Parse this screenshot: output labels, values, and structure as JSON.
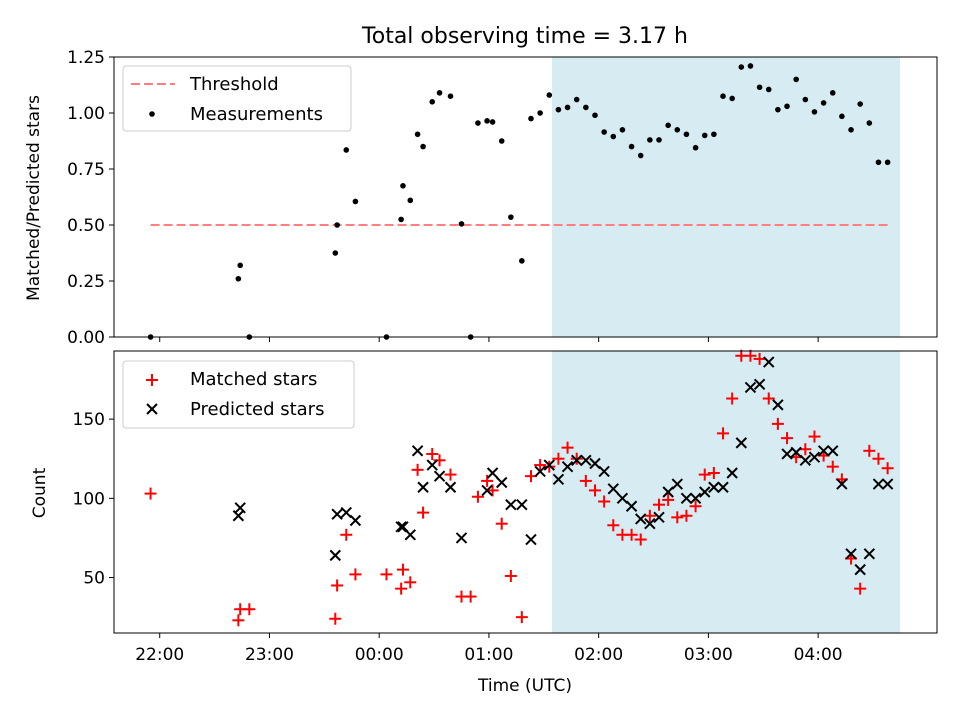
{
  "chart_data": {
    "type": "scatter",
    "title": "Total observing time = 3.17 h",
    "xlabel": "Time (UTC)",
    "x_unit": "hours",
    "xlim": [
      "21:35",
      "05:05"
    ],
    "x_ticks": [
      "22:00",
      "23:00",
      "00:00",
      "01:00",
      "02:00",
      "03:00",
      "04:00"
    ],
    "highlight_region": {
      "start": "01:29",
      "end": "04:40",
      "color": "#add8e6"
    },
    "panels": [
      {
        "name": "ratio",
        "ylabel": "Matched/Predicted stars",
        "ylim": [
          0,
          1.25
        ],
        "yticks": [
          "0.00",
          "0.25",
          "0.50",
          "0.75",
          "1.00",
          "1.25"
        ],
        "legend_position": "upper-left",
        "series": [
          {
            "name": "Threshold",
            "kind": "line",
            "style": "dashed",
            "color": "#ff7f7f",
            "x": [
              "21:55",
              "04:40"
            ],
            "y": [
              0.5,
              0.5
            ]
          },
          {
            "name": "Measurements",
            "kind": "scatter",
            "marker": "dot",
            "color": "#000000",
            "x": [
              "21:55",
              "22:43",
              "22:44",
              "22:49",
              "23:36",
              "23:37",
              "23:42",
              "23:47",
              "00:04",
              "00:12",
              "00:13",
              "00:17",
              "00:21",
              "00:24",
              "00:29",
              "00:33",
              "00:39",
              "00:45",
              "00:50",
              "00:54",
              "00:59",
              "01:02",
              "01:07",
              "01:12",
              "01:18",
              "01:23",
              "01:28",
              "01:33",
              "01:38",
              "01:43",
              "01:48",
              "01:53",
              "01:58",
              "02:03",
              "02:08",
              "02:13",
              "02:18",
              "02:23",
              "02:28",
              "02:33",
              "02:38",
              "02:43",
              "02:48",
              "02:53",
              "02:58",
              "03:03",
              "03:08",
              "03:13",
              "03:18",
              "03:23",
              "03:28",
              "03:33",
              "03:38",
              "03:43",
              "03:48",
              "03:53",
              "03:58",
              "04:03",
              "04:08",
              "04:13",
              "04:18",
              "04:23",
              "04:28",
              "04:33",
              "04:38"
            ],
            "y": [
              0.0,
              0.26,
              0.32,
              0.0,
              0.375,
              0.5,
              0.835,
              0.605,
              0.0,
              0.525,
              0.675,
              0.61,
              0.905,
              0.85,
              1.05,
              1.09,
              1.075,
              0.505,
              0.0,
              0.955,
              0.965,
              0.96,
              0.875,
              0.535,
              0.34,
              0.975,
              1.0,
              1.08,
              1.015,
              1.025,
              1.06,
              1.025,
              0.99,
              0.915,
              0.895,
              0.925,
              0.85,
              0.81,
              0.88,
              0.88,
              0.945,
              0.925,
              0.905,
              0.845,
              0.9,
              0.905,
              1.075,
              1.065,
              1.205,
              1.21,
              1.115,
              1.105,
              1.015,
              1.03,
              1.15,
              1.06,
              1.005,
              1.045,
              1.09,
              0.985,
              0.925,
              1.04,
              0.955,
              0.78,
              0.78
            ]
          }
        ]
      },
      {
        "name": "counts",
        "ylabel": "Count",
        "ylim": [
          15,
          193
        ],
        "yticks": [
          "50",
          "100",
          "150"
        ],
        "legend_position": "upper-left",
        "series": [
          {
            "name": "Matched stars",
            "kind": "scatter",
            "marker": "plus",
            "color": "#ff0000",
            "x": [
              "21:55",
              "22:43",
              "22:44",
              "22:49",
              "23:36",
              "23:37",
              "23:42",
              "23:47",
              "00:04",
              "00:12",
              "00:13",
              "00:17",
              "00:21",
              "00:24",
              "00:29",
              "00:33",
              "00:39",
              "00:45",
              "00:50",
              "00:54",
              "00:59",
              "01:02",
              "01:07",
              "01:12",
              "01:18",
              "01:23",
              "01:28",
              "01:33",
              "01:38",
              "01:43",
              "01:48",
              "01:53",
              "01:58",
              "02:03",
              "02:08",
              "02:13",
              "02:18",
              "02:23",
              "02:28",
              "02:33",
              "02:38",
              "02:43",
              "02:48",
              "02:53",
              "02:58",
              "03:03",
              "03:08",
              "03:13",
              "03:18",
              "03:23",
              "03:28",
              "03:33",
              "03:38",
              "03:43",
              "03:48",
              "03:53",
              "03:58",
              "04:03",
              "04:08",
              "04:13",
              "04:18",
              "04:23",
              "04:28",
              "04:33",
              "04:38"
            ],
            "y": [
              103,
              23,
              30,
              30,
              24,
              45,
              77,
              52,
              52,
              43,
              55,
              47,
              118,
              91,
              128,
              124,
              115,
              38,
              38,
              101,
              111,
              105,
              84,
              51,
              25,
              114,
              121,
              120,
              125,
              132,
              125,
              111,
              105,
              98,
              83,
              77,
              77,
              74,
              89,
              96,
              99,
              88,
              89,
              95,
              115,
              116,
              141,
              163,
              190,
              190,
              188,
              163,
              147,
              138,
              126,
              131,
              139,
              127,
              120,
              112,
              62,
              43,
              130,
              125,
              119
            ]
          },
          {
            "name": "Predicted stars",
            "kind": "scatter",
            "marker": "x",
            "color": "#000000",
            "x": [
              "22:43",
              "22:44",
              "23:36",
              "23:37",
              "23:42",
              "23:47",
              "00:12",
              "00:13",
              "00:17",
              "00:21",
              "00:24",
              "00:29",
              "00:33",
              "00:39",
              "00:45",
              "00:59",
              "01:02",
              "01:07",
              "01:12",
              "01:18",
              "01:23",
              "01:28",
              "01:33",
              "01:38",
              "01:43",
              "01:48",
              "01:53",
              "01:58",
              "02:03",
              "02:08",
              "02:13",
              "02:18",
              "02:23",
              "02:28",
              "02:33",
              "02:38",
              "02:43",
              "02:48",
              "02:53",
              "02:58",
              "03:03",
              "03:08",
              "03:13",
              "03:18",
              "03:23",
              "03:28",
              "03:33",
              "03:38",
              "03:43",
              "03:48",
              "03:53",
              "03:58",
              "04:03",
              "04:08",
              "04:13",
              "04:18",
              "04:23",
              "04:28",
              "04:33",
              "04:38"
            ],
            "y": [
              89,
              94,
              64,
              90,
              91,
              86,
              82,
              82,
              77,
              130,
              107,
              121,
              114,
              107,
              75,
              105,
              116,
              110,
              96,
              96,
              74,
              117,
              121,
              112,
              120,
              124,
              124,
              122,
              117,
              106,
              100,
              95,
              87,
              84,
              88,
              104,
              109,
              100,
              100,
              104,
              107,
              107,
              116,
              135,
              170,
              172,
              186,
              159,
              128,
              129,
              124,
              126,
              130,
              130,
              109,
              65,
              55,
              65,
              109,
              109
            ]
          }
        ]
      }
    ]
  }
}
